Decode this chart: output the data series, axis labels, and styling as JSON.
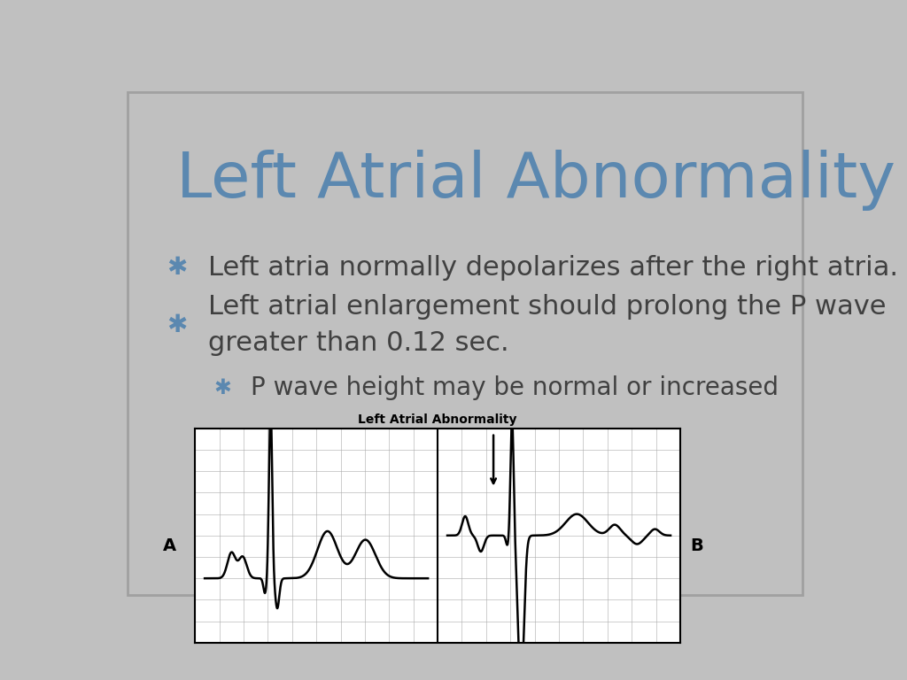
{
  "title": "Left Atrial Abnormality",
  "title_color": "#5b88b0",
  "slide_bg": "#c0c0c0",
  "bullet_color": "#5b88b0",
  "text_color": "#404040",
  "bullet1": "Left atria normally depolarizes after the right atria.",
  "bullet2": "Left atrial enlargement should prolong the P wave\ngreater than 0.12 sec.",
  "bullet3": "P wave height may be normal or increased",
  "ecg_title": "Left Atrial Abnormality",
  "label_A": "A",
  "label_B": "B",
  "title_fontsize": 52,
  "bullet_fontsize": 22,
  "sub_bullet_fontsize": 20
}
